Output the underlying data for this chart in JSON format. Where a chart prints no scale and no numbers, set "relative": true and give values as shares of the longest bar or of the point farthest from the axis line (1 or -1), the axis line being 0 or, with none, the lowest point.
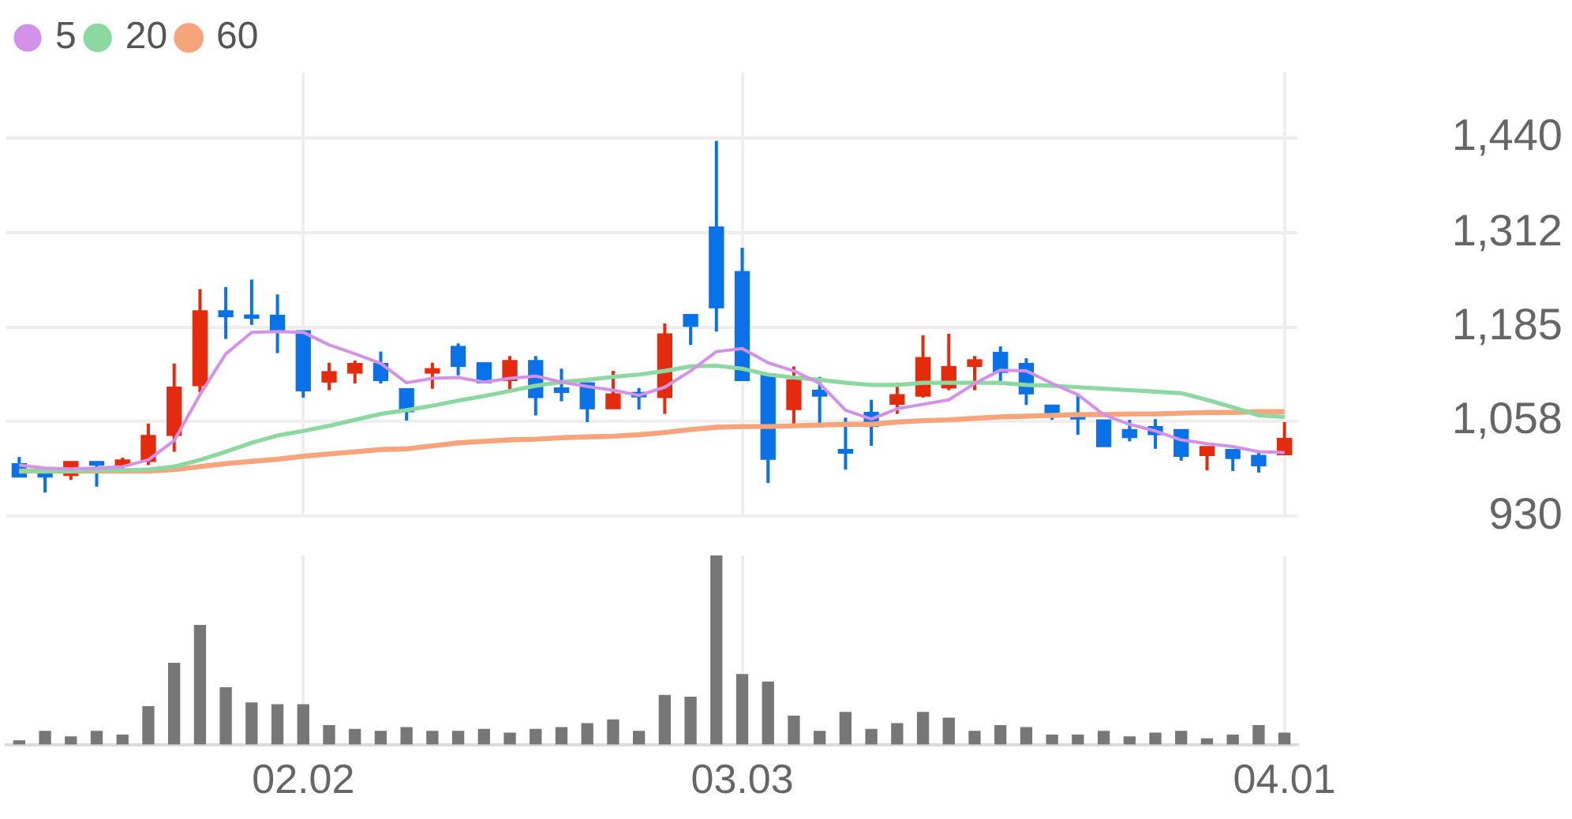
{
  "chart_data": [
    {
      "type": "candlestick",
      "categories": [
        null,
        null,
        null,
        null,
        null,
        null,
        null,
        null,
        null,
        null,
        null,
        "02.02",
        null,
        null,
        null,
        null,
        null,
        null,
        null,
        null,
        null,
        null,
        null,
        null,
        null,
        null,
        null,
        null,
        "03.03",
        null,
        null,
        null,
        null,
        null,
        null,
        null,
        null,
        null,
        null,
        null,
        null,
        null,
        null,
        null,
        null,
        null,
        null,
        null,
        null,
        "04.01"
      ],
      "ohlc": [
        [
          1001,
          1010,
          983,
          983
        ],
        [
          993,
          993,
          962,
          983
        ],
        [
          985,
          1004,
          979,
          1004
        ],
        [
          1004,
          1004,
          970,
          999
        ],
        [
          999,
          1009,
          988,
          1006
        ],
        [
          1004,
          1055,
          999,
          1039
        ],
        [
          1039,
          1136,
          1017,
          1104
        ],
        [
          1106,
          1236,
          1097,
          1207
        ],
        [
          1207,
          1239,
          1169,
          1199
        ],
        [
          1201,
          1249,
          1188,
          1197
        ],
        [
          1201,
          1229,
          1150,
          1179
        ],
        [
          1180,
          1180,
          1090,
          1099
        ],
        [
          1111,
          1137,
          1100,
          1125
        ],
        [
          1123,
          1140,
          1109,
          1136
        ],
        [
          1136,
          1152,
          1109,
          1113
        ],
        [
          1102,
          1102,
          1059,
          1071
        ],
        [
          1123,
          1137,
          1102,
          1129
        ],
        [
          1159,
          1163,
          1120,
          1132
        ],
        [
          1137,
          1137,
          1109,
          1110
        ],
        [
          1113,
          1146,
          1100,
          1140
        ],
        [
          1140,
          1146,
          1066,
          1090
        ],
        [
          1103,
          1129,
          1085,
          1097
        ],
        [
          1110,
          1110,
          1057,
          1075
        ],
        [
          1075,
          1126,
          1075,
          1095
        ],
        [
          1097,
          1103,
          1074,
          1091
        ],
        [
          1090,
          1190,
          1068,
          1176
        ],
        [
          1202,
          1202,
          1161,
          1186
        ],
        [
          1320,
          1436,
          1179,
          1211
        ],
        [
          1260,
          1292,
          1113,
          1113
        ],
        [
          1122,
          1122,
          975,
          1007
        ],
        [
          1074,
          1132,
          1050,
          1114
        ],
        [
          1100,
          1118,
          1054,
          1092
        ],
        [
          1020,
          1063,
          993,
          1015
        ],
        [
          1070,
          1087,
          1025,
          1051
        ],
        [
          1081,
          1110,
          1068,
          1094
        ],
        [
          1092,
          1174,
          1090,
          1144
        ],
        [
          1103,
          1176,
          1100,
          1132
        ],
        [
          1132,
          1146,
          1100,
          1141
        ],
        [
          1151,
          1159,
          1107,
          1124
        ],
        [
          1136,
          1143,
          1080,
          1095
        ],
        [
          1080,
          1080,
          1060,
          1064
        ],
        [
          1068,
          1093,
          1040,
          1061
        ],
        [
          1060,
          1060,
          1024,
          1024
        ],
        [
          1047,
          1060,
          1031,
          1036
        ],
        [
          1051,
          1061,
          1021,
          1040
        ],
        [
          1047,
          1047,
          1005,
          1011
        ],
        [
          1012,
          1024,
          992,
          1024
        ],
        [
          1020,
          1020,
          991,
          1008
        ],
        [
          1012,
          1018,
          989,
          998
        ],
        [
          1013,
          1057,
          1013,
          1035
        ]
      ],
      "colors": [
        "#0a72e8",
        "#0a72e8",
        "#e52b0e",
        "#0a72e8",
        "#e52b0e",
        "#e52b0e",
        "#e52b0e",
        "#e52b0e",
        "#0a72e8",
        "#0a72e8",
        "#0a72e8",
        "#0a72e8",
        "#e52b0e",
        "#e52b0e",
        "#0a72e8",
        "#0a72e8",
        "#e52b0e",
        "#0a72e8",
        "#0a72e8",
        "#e52b0e",
        "#0a72e8",
        "#0a72e8",
        "#0a72e8",
        "#e52b0e",
        "#0a72e8",
        "#e52b0e",
        "#0a72e8",
        "#0a72e8",
        "#0a72e8",
        "#0a72e8",
        "#e52b0e",
        "#0a72e8",
        "#0a72e8",
        "#0a72e8",
        "#e52b0e",
        "#e52b0e",
        "#e52b0e",
        "#e52b0e",
        "#0a72e8",
        "#0a72e8",
        "#0a72e8",
        "#0a72e8",
        "#0a72e8",
        "#0a72e8",
        "#0a72e8",
        "#0a72e8",
        "#e52b0e",
        "#0a72e8",
        "#0a72e8",
        "#e52b0e"
      ],
      "series": [
        {
          "type": "line",
          "name": "5",
          "color": "#d391e8",
          "values": [
            999,
            995,
            994,
            995,
            997,
            1006,
            1032,
            1094,
            1149,
            1178,
            1179,
            1178,
            1161,
            1149,
            1136,
            1110,
            1116,
            1117,
            1111,
            1116,
            1119,
            1111,
            1105,
            1100,
            1093,
            1104,
            1126,
            1152,
            1156,
            1137,
            1126,
            1109,
            1073,
            1061,
            1075,
            1081,
            1087,
            1109,
            1127,
            1126,
            1109,
            1094,
            1067,
            1054,
            1045,
            1033,
            1028,
            1024,
            1017,
            1016
          ]
        },
        {
          "type": "line",
          "name": "20",
          "color": "#8bd9a0",
          "values": [
            991,
            991,
            991,
            992,
            992,
            993,
            997,
            1006,
            1017,
            1029,
            1039,
            1045,
            1052,
            1060,
            1068,
            1073,
            1079,
            1086,
            1092,
            1099,
            1106,
            1111,
            1114,
            1118,
            1121,
            1126,
            1132,
            1133,
            1129,
            1121,
            1117,
            1114,
            1110,
            1107,
            1107,
            1110,
            1110,
            1110,
            1110,
            1107,
            1106,
            1104,
            1102,
            1100,
            1098,
            1096,
            1087,
            1077,
            1066,
            1064
          ]
        },
        {
          "type": "line",
          "name": "60",
          "color": "#f5a47c",
          "values": [
            991,
            991,
            991,
            991,
            991,
            991,
            993,
            997,
            1001,
            1004,
            1007,
            1011,
            1014,
            1017,
            1020,
            1021,
            1025,
            1029,
            1031,
            1033,
            1034,
            1036,
            1037,
            1038,
            1040,
            1043,
            1047,
            1050,
            1051,
            1051,
            1052,
            1053,
            1054,
            1054,
            1057,
            1059,
            1060,
            1062,
            1064,
            1065,
            1066,
            1067,
            1067,
            1068,
            1068,
            1069,
            1070,
            1070,
            1071,
            1071
          ]
        }
      ],
      "ylim": [
        930,
        1528
      ],
      "yticks": [
        930,
        {
          "value": 1058,
          "label": "1,058"
        },
        {
          "value": 1185,
          "label": "1,185"
        },
        {
          "value": 1312,
          "label": "1,312"
        },
        {
          "value": 1440,
          "label": "1,440"
        }
      ],
      "grid": true,
      "legend": "top left",
      "tick_labels": "y"
    },
    {
      "type": "bar",
      "relative": true,
      "categories": [
        null,
        null,
        null,
        null,
        null,
        null,
        null,
        null,
        null,
        null,
        null,
        "02.02",
        null,
        null,
        null,
        null,
        null,
        null,
        null,
        null,
        null,
        null,
        null,
        null,
        null,
        null,
        null,
        null,
        "03.03",
        null,
        null,
        null,
        null,
        null,
        null,
        null,
        null,
        null,
        null,
        null,
        null,
        null,
        null,
        null,
        null,
        null,
        null,
        null,
        null,
        "04.01"
      ],
      "values": [
        0.02,
        0.07,
        0.04,
        0.07,
        0.05,
        0.2,
        0.43,
        0.63,
        0.3,
        0.22,
        0.21,
        0.21,
        0.1,
        0.08,
        0.07,
        0.09,
        0.07,
        0.07,
        0.08,
        0.06,
        0.08,
        0.09,
        0.11,
        0.13,
        0.07,
        0.26,
        0.25,
        1,
        0.37,
        0.33,
        0.15,
        0.07,
        0.17,
        0.08,
        0.11,
        0.17,
        0.14,
        0.07,
        0.1,
        0.09,
        0.05,
        0.05,
        0.07,
        0.04,
        0.06,
        0.07,
        0.03,
        0.05,
        0.1,
        0.06
      ],
      "color": "#777777",
      "grid": "x",
      "tick_labels": "x"
    }
  ]
}
